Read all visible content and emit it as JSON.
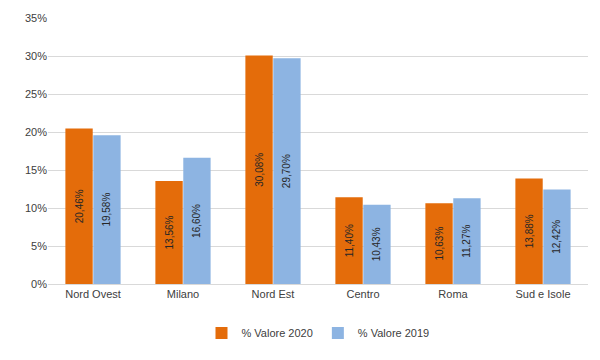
{
  "chart_data": {
    "type": "bar",
    "categories": [
      "Nord Ovest",
      "Milano",
      "Nord Est",
      "Centro",
      "Roma",
      "Sud e Isole"
    ],
    "series": [
      {
        "name": "% Valore 2020",
        "color": "#e46c0a",
        "values": [
          20.46,
          13.56,
          30.08,
          11.4,
          10.63,
          13.88
        ],
        "value_labels": [
          "20,46%",
          "13,56%",
          "30,08%",
          "11,40%",
          "10,63%",
          "13,88%"
        ]
      },
      {
        "name": "% Valore 2019",
        "color": "#8db4e2",
        "values": [
          19.58,
          16.6,
          29.7,
          10.43,
          11.27,
          12.42
        ],
        "value_labels": [
          "19,58%",
          "16,60%",
          "29,70%",
          "10,43%",
          "11,27%",
          "12,42%"
        ]
      }
    ],
    "ylim": [
      0,
      35
    ],
    "yticks": [
      {
        "value": 0,
        "label": "0%"
      },
      {
        "value": 5,
        "label": "5%"
      },
      {
        "value": 10,
        "label": "10%"
      },
      {
        "value": 15,
        "label": "15%"
      },
      {
        "value": 20,
        "label": "20%"
      },
      {
        "value": 25,
        "label": "25%"
      },
      {
        "value": 30,
        "label": "30%"
      },
      {
        "value": 35,
        "label": "35%"
      }
    ],
    "grid": true,
    "legend": "bottom",
    "data_labels": true
  }
}
